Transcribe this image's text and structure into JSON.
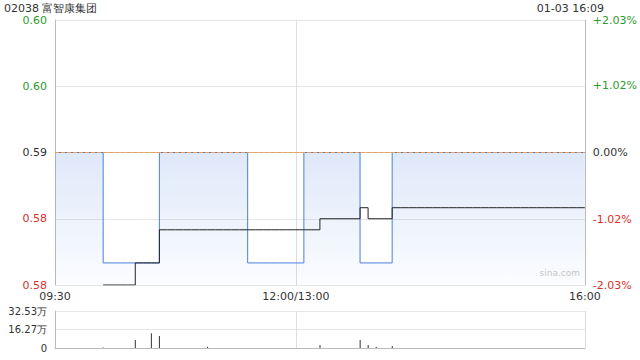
{
  "chart_data": [
    {
      "type": "line",
      "title": "02038 富智康集团",
      "subtitle": "01-03 16:09",
      "watermark": "sina.com",
      "categories": [
        "09:30",
        null,
        null,
        null,
        null,
        null,
        null,
        null,
        null,
        null,
        null,
        null,
        null,
        null,
        null,
        null,
        null,
        null,
        null,
        null,
        null,
        null,
        null,
        null,
        null,
        null,
        null,
        null,
        null,
        null,
        "12:00/13:00",
        null,
        null,
        null,
        null,
        null,
        null,
        null,
        null,
        null,
        null,
        null,
        null,
        null,
        null,
        null,
        null,
        null,
        null,
        null,
        null,
        null,
        null,
        null,
        null,
        null,
        null,
        null,
        null,
        null,
        null,
        null,
        null,
        null,
        null,
        null,
        "16:00"
      ],
      "series": [
        {
          "type": "area",
          "color": "#4a7fe0",
          "values": [
            0.59,
            0.59,
            0.59,
            0.59,
            0.59,
            0.59,
            0.58,
            0.58,
            0.58,
            0.58,
            0.58,
            0.58,
            0.58,
            0.59,
            0.59,
            0.59,
            0.59,
            0.59,
            0.59,
            0.59,
            0.59,
            0.59,
            0.59,
            0.59,
            0.58,
            0.58,
            0.58,
            0.58,
            0.58,
            0.58,
            0.58,
            0.59,
            0.59,
            0.59,
            0.59,
            0.59,
            0.59,
            0.59,
            0.58,
            0.58,
            0.58,
            0.58,
            0.59,
            0.59,
            0.59,
            0.59,
            0.59,
            0.59,
            0.59,
            0.59,
            0.59,
            0.59,
            0.59,
            0.59,
            0.59,
            0.59,
            0.59,
            0.59,
            0.59,
            0.59,
            0.59,
            0.59,
            0.59,
            0.59,
            0.59,
            0.59,
            0.59
          ]
        },
        {
          "type": "line",
          "color": "#222222",
          "values": [
            null,
            null,
            null,
            null,
            null,
            null,
            0.578,
            0.578,
            0.578,
            0.578,
            0.58,
            0.58,
            0.58,
            0.583,
            0.583,
            0.583,
            0.583,
            0.583,
            0.583,
            0.583,
            0.583,
            0.583,
            0.583,
            0.583,
            0.583,
            0.583,
            0.583,
            0.583,
            0.583,
            0.583,
            0.583,
            0.583,
            0.583,
            0.584,
            0.584,
            0.584,
            0.584,
            0.584,
            0.585,
            0.584,
            0.584,
            0.584,
            0.585,
            0.585,
            0.585,
            0.585,
            0.585,
            0.585,
            0.585,
            0.585,
            0.585,
            0.585,
            0.585,
            0.585,
            0.585,
            0.585,
            0.585,
            0.585,
            0.585,
            0.585,
            0.585,
            0.585,
            0.585,
            0.585,
            0.585,
            0.585,
            0.585
          ]
        }
      ],
      "prev_close": 0.59,
      "ylim": [
        0.578,
        0.602
      ],
      "yticks": [
        {
          "value": 0.578,
          "label": "0.58"
        },
        {
          "value": 0.584,
          "label": "0.58"
        },
        0.59,
        {
          "value": 0.596,
          "label": "0.60"
        },
        {
          "value": 0.602,
          "label": "0.60"
        }
      ],
      "y2lim": [
        -2.03,
        2.03
      ],
      "y2ticks": [
        {
          "value": -2.03,
          "label": "-2.03%"
        },
        {
          "value": -1.02,
          "label": "-1.02%"
        },
        {
          "value": 0,
          "label": "0.00%"
        },
        {
          "value": 1.02,
          "label": "+1.02%"
        },
        {
          "value": 2.03,
          "label": "+2.03%"
        }
      ],
      "grid": true
    },
    {
      "type": "bar",
      "categories": [
        "09:30",
        null,
        null,
        null,
        null,
        null,
        null,
        null,
        null,
        null,
        null,
        null,
        null,
        null,
        null,
        null,
        null,
        null,
        null,
        null,
        null,
        null,
        null,
        null,
        null,
        null,
        null,
        null,
        null,
        null,
        "12:00/13:00",
        null,
        null,
        null,
        null,
        null,
        null,
        null,
        null,
        null,
        null,
        null,
        null,
        null,
        null,
        null,
        null,
        null,
        null,
        null,
        null,
        null,
        null,
        null,
        null,
        null,
        null,
        null,
        null,
        null,
        null,
        null,
        null,
        null,
        null,
        null,
        "16:00"
      ],
      "values": [
        0,
        0,
        0,
        0,
        0,
        0,
        5000,
        0,
        0,
        0,
        70000,
        0,
        130000,
        105000,
        0,
        0,
        0,
        0,
        0,
        10000,
        0,
        0,
        0,
        0,
        0,
        0,
        0,
        0,
        0,
        0,
        0,
        0,
        0,
        26000,
        0,
        0,
        0,
        0,
        70000,
        26000,
        10000,
        0,
        18000,
        0,
        0,
        0,
        0,
        0,
        0,
        0,
        0,
        0,
        0,
        0,
        0,
        0,
        0,
        0,
        0,
        0,
        0,
        0,
        0,
        0,
        0,
        0,
        0
      ],
      "color": "#333333",
      "ylim": [
        0,
        325300
      ],
      "yticks": [
        0,
        {
          "value": 162700,
          "label": "16.27万"
        },
        {
          "value": 325300,
          "label": "32.53万"
        }
      ],
      "tick_labels": "y",
      "grid": true
    }
  ]
}
